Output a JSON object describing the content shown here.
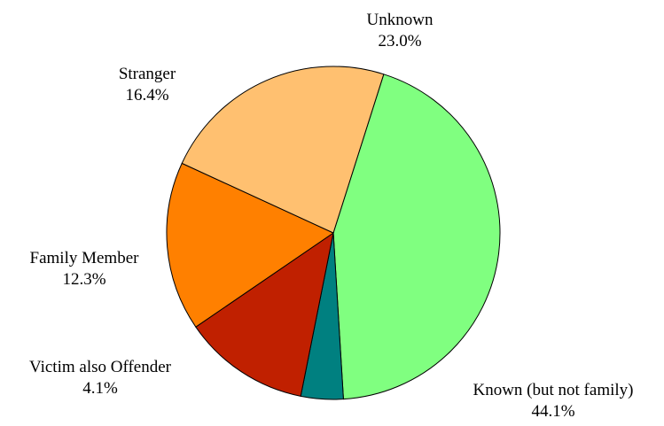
{
  "chart_data": {
    "type": "pie",
    "title": "",
    "start_angle_deg": 72.4,
    "direction": "clockwise",
    "slices": [
      {
        "label": "Known (but not family)",
        "value": 44.1,
        "value_label": "44.1%",
        "color": "#80ff80"
      },
      {
        "label": "Victim also Offender",
        "value": 4.1,
        "value_label": "4.1%",
        "color": "#008080"
      },
      {
        "label": "Family Member",
        "value": 12.3,
        "value_label": "12.3%",
        "color": "#c02000"
      },
      {
        "label": "Stranger",
        "value": 16.4,
        "value_label": "16.4%",
        "color": "#ff8000"
      },
      {
        "label": "Unknown",
        "value": 23.0,
        "value_label": "23.0%",
        "color": "#ffc070"
      }
    ]
  }
}
